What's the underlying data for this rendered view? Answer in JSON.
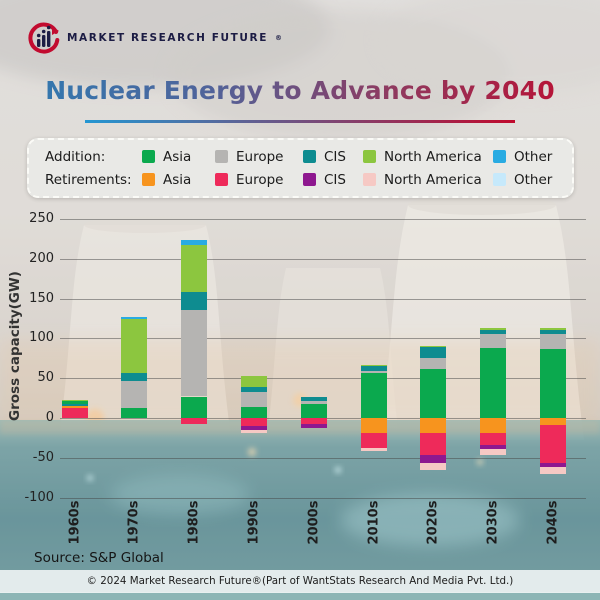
{
  "logo": {
    "brand": "MARKET RESEARCH FUTURE",
    "registered": "®"
  },
  "title": "Nuclear Energy to Advance by 2040",
  "source": "Source: S&P Global",
  "footer": "© 2024 Market Research Future®(Part of WantStats Research And Media Pvt. Ltd.)",
  "colors": {
    "add_asia": "#0BA94E",
    "add_europe": "#B5B4B2",
    "add_cis": "#0E8C90",
    "add_na": "#8CC63F",
    "add_other": "#29ABE2",
    "ret_asia": "#F7941E",
    "ret_europe": "#EE2A5A",
    "ret_cis": "#8E188F",
    "ret_na": "#F6C9C4",
    "ret_other": "#C6E9FB",
    "title_blue": "#2D7CB3",
    "title_red": "#C00A2D"
  },
  "legend": {
    "rows": [
      {
        "label": "Addition:",
        "items": [
          {
            "name": "Asia",
            "key": "add_asia"
          },
          {
            "name": "Europe",
            "key": "add_europe"
          },
          {
            "name": "CIS",
            "key": "add_cis"
          },
          {
            "name": "North America",
            "key": "add_na"
          },
          {
            "name": "Other",
            "key": "add_other"
          }
        ]
      },
      {
        "label": "Retirements:",
        "items": [
          {
            "name": "Asia",
            "key": "ret_asia"
          },
          {
            "name": "Europe",
            "key": "ret_europe"
          },
          {
            "name": "CIS",
            "key": "ret_cis"
          },
          {
            "name": "North America",
            "key": "ret_na"
          },
          {
            "name": "Other",
            "key": "ret_other"
          }
        ]
      }
    ]
  },
  "chart_data": {
    "type": "bar",
    "stacked": true,
    "title": "Nuclear Energy to Advance by 2040",
    "xlabel": "",
    "ylabel": "Gross capacity(GW)",
    "ylim": [
      -100,
      250
    ],
    "yticks": [
      250,
      200,
      150,
      100,
      50,
      0,
      -50,
      -100
    ],
    "grid": true,
    "units": "GW",
    "categories": [
      "1960s",
      "1970s",
      "1980s",
      "1990s",
      "2000s",
      "2010s",
      "2020s",
      "2030s",
      "2040s"
    ],
    "bars": [
      {
        "category": "1960s",
        "pos": [
          [
            "ret_europe",
            12
          ],
          [
            "ret_asia",
            3
          ],
          [
            "add_cis",
            3
          ],
          [
            "add_asia",
            3
          ],
          [
            "add_na",
            2
          ]
        ],
        "neg": []
      },
      {
        "category": "1970s",
        "pos": [
          [
            "add_asia",
            13
          ],
          [
            "add_europe",
            34
          ],
          [
            "add_cis",
            9
          ],
          [
            "add_na",
            68
          ],
          [
            "add_other",
            3
          ]
        ],
        "neg": []
      },
      {
        "category": "1980s",
        "pos": [
          [
            "add_asia",
            27
          ],
          [
            "add_europe",
            109
          ],
          [
            "add_cis",
            22
          ],
          [
            "add_na",
            59
          ],
          [
            "add_other",
            6
          ]
        ],
        "neg": [
          [
            "ret_europe",
            8
          ]
        ]
      },
      {
        "category": "1990s",
        "pos": [
          [
            "add_asia",
            14
          ],
          [
            "add_europe",
            19
          ],
          [
            "add_cis",
            6
          ],
          [
            "add_na",
            14
          ]
        ],
        "neg": [
          [
            "ret_europe",
            10
          ],
          [
            "ret_cis",
            5
          ],
          [
            "ret_na",
            4
          ]
        ]
      },
      {
        "category": "2000s",
        "pos": [
          [
            "add_asia",
            18
          ],
          [
            "add_europe",
            3
          ],
          [
            "add_cis",
            6
          ]
        ],
        "neg": [
          [
            "ret_europe",
            7
          ],
          [
            "ret_cis",
            5
          ]
        ]
      },
      {
        "category": "2010s",
        "pos": [
          [
            "add_asia",
            57
          ],
          [
            "add_europe",
            2
          ],
          [
            "add_cis",
            6
          ],
          [
            "add_na",
            2
          ]
        ],
        "neg": [
          [
            "ret_asia",
            19
          ],
          [
            "ret_europe",
            19
          ],
          [
            "ret_na",
            4
          ]
        ]
      },
      {
        "category": "2020s",
        "pos": [
          [
            "add_asia",
            62
          ],
          [
            "add_europe",
            13
          ],
          [
            "add_cis",
            14
          ],
          [
            "add_na",
            2
          ]
        ],
        "neg": [
          [
            "ret_asia",
            19
          ],
          [
            "ret_europe",
            28
          ],
          [
            "ret_cis",
            10
          ],
          [
            "ret_na",
            8
          ]
        ]
      },
      {
        "category": "2030s",
        "pos": [
          [
            "add_asia",
            88
          ],
          [
            "add_europe",
            17
          ],
          [
            "add_cis",
            6
          ],
          [
            "add_na",
            2
          ]
        ],
        "neg": [
          [
            "ret_asia",
            19
          ],
          [
            "ret_europe",
            15
          ],
          [
            "ret_cis",
            5
          ],
          [
            "ret_na",
            7
          ]
        ]
      },
      {
        "category": "2040s",
        "pos": [
          [
            "add_asia",
            87
          ],
          [
            "add_europe",
            18
          ],
          [
            "add_cis",
            6
          ],
          [
            "add_na",
            2
          ]
        ],
        "neg": [
          [
            "ret_asia",
            9
          ],
          [
            "ret_europe",
            47
          ],
          [
            "ret_cis",
            5
          ],
          [
            "ret_na",
            9
          ]
        ]
      }
    ]
  }
}
